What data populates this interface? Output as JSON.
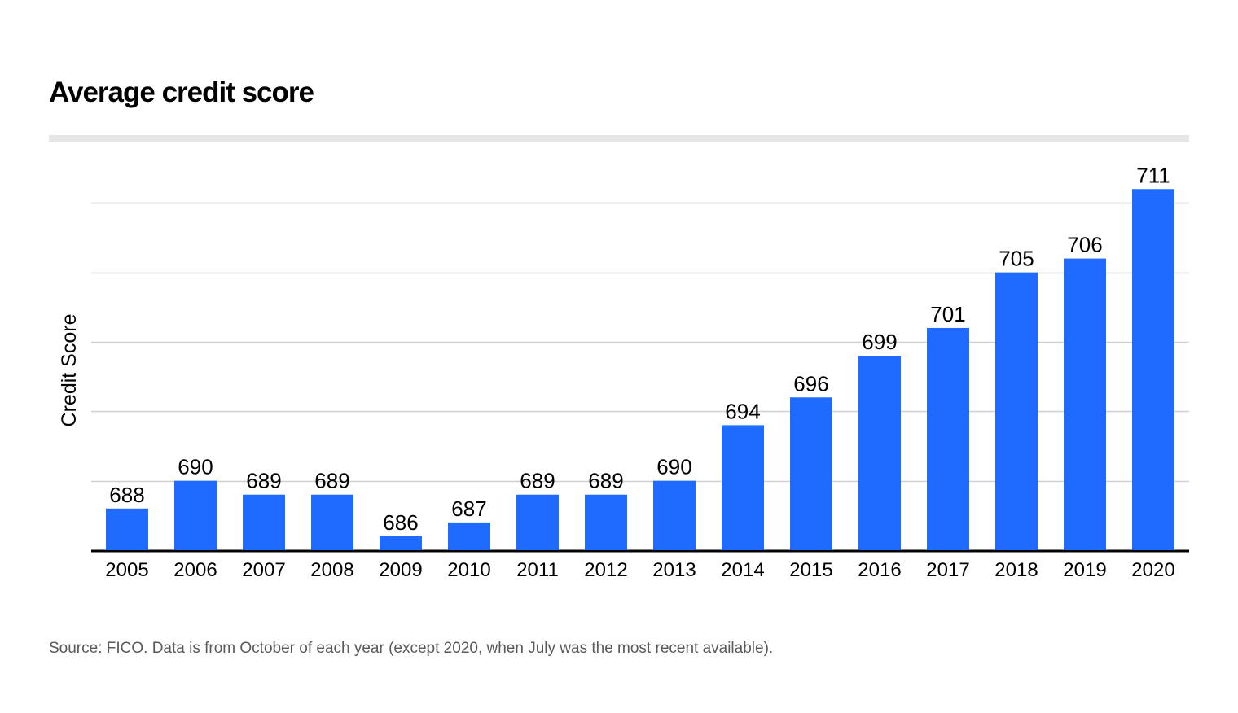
{
  "title": "Average credit score",
  "source": "Source: FICO. Data is from October of each year (except 2020, when July was the most recent available).",
  "colors": {
    "bar": "#1f6bff",
    "gridline": "#d0d0d0",
    "baseline": "#000000",
    "divider": "#e6e6e6",
    "source_text": "#595959"
  },
  "chart_data": {
    "type": "bar",
    "title": "Average credit score",
    "xlabel": "",
    "ylabel": "Credit Score",
    "categories": [
      "2005",
      "2006",
      "2007",
      "2008",
      "2009",
      "2010",
      "2011",
      "2012",
      "2013",
      "2014",
      "2015",
      "2016",
      "2017",
      "2018",
      "2019",
      "2020"
    ],
    "values": [
      688,
      690,
      689,
      689,
      686,
      687,
      689,
      689,
      690,
      694,
      696,
      699,
      701,
      705,
      706,
      711
    ],
    "ylim": [
      685,
      715
    ],
    "data_labels": true,
    "y_tick_labels_visible": false,
    "grid": true,
    "legend": "none"
  }
}
